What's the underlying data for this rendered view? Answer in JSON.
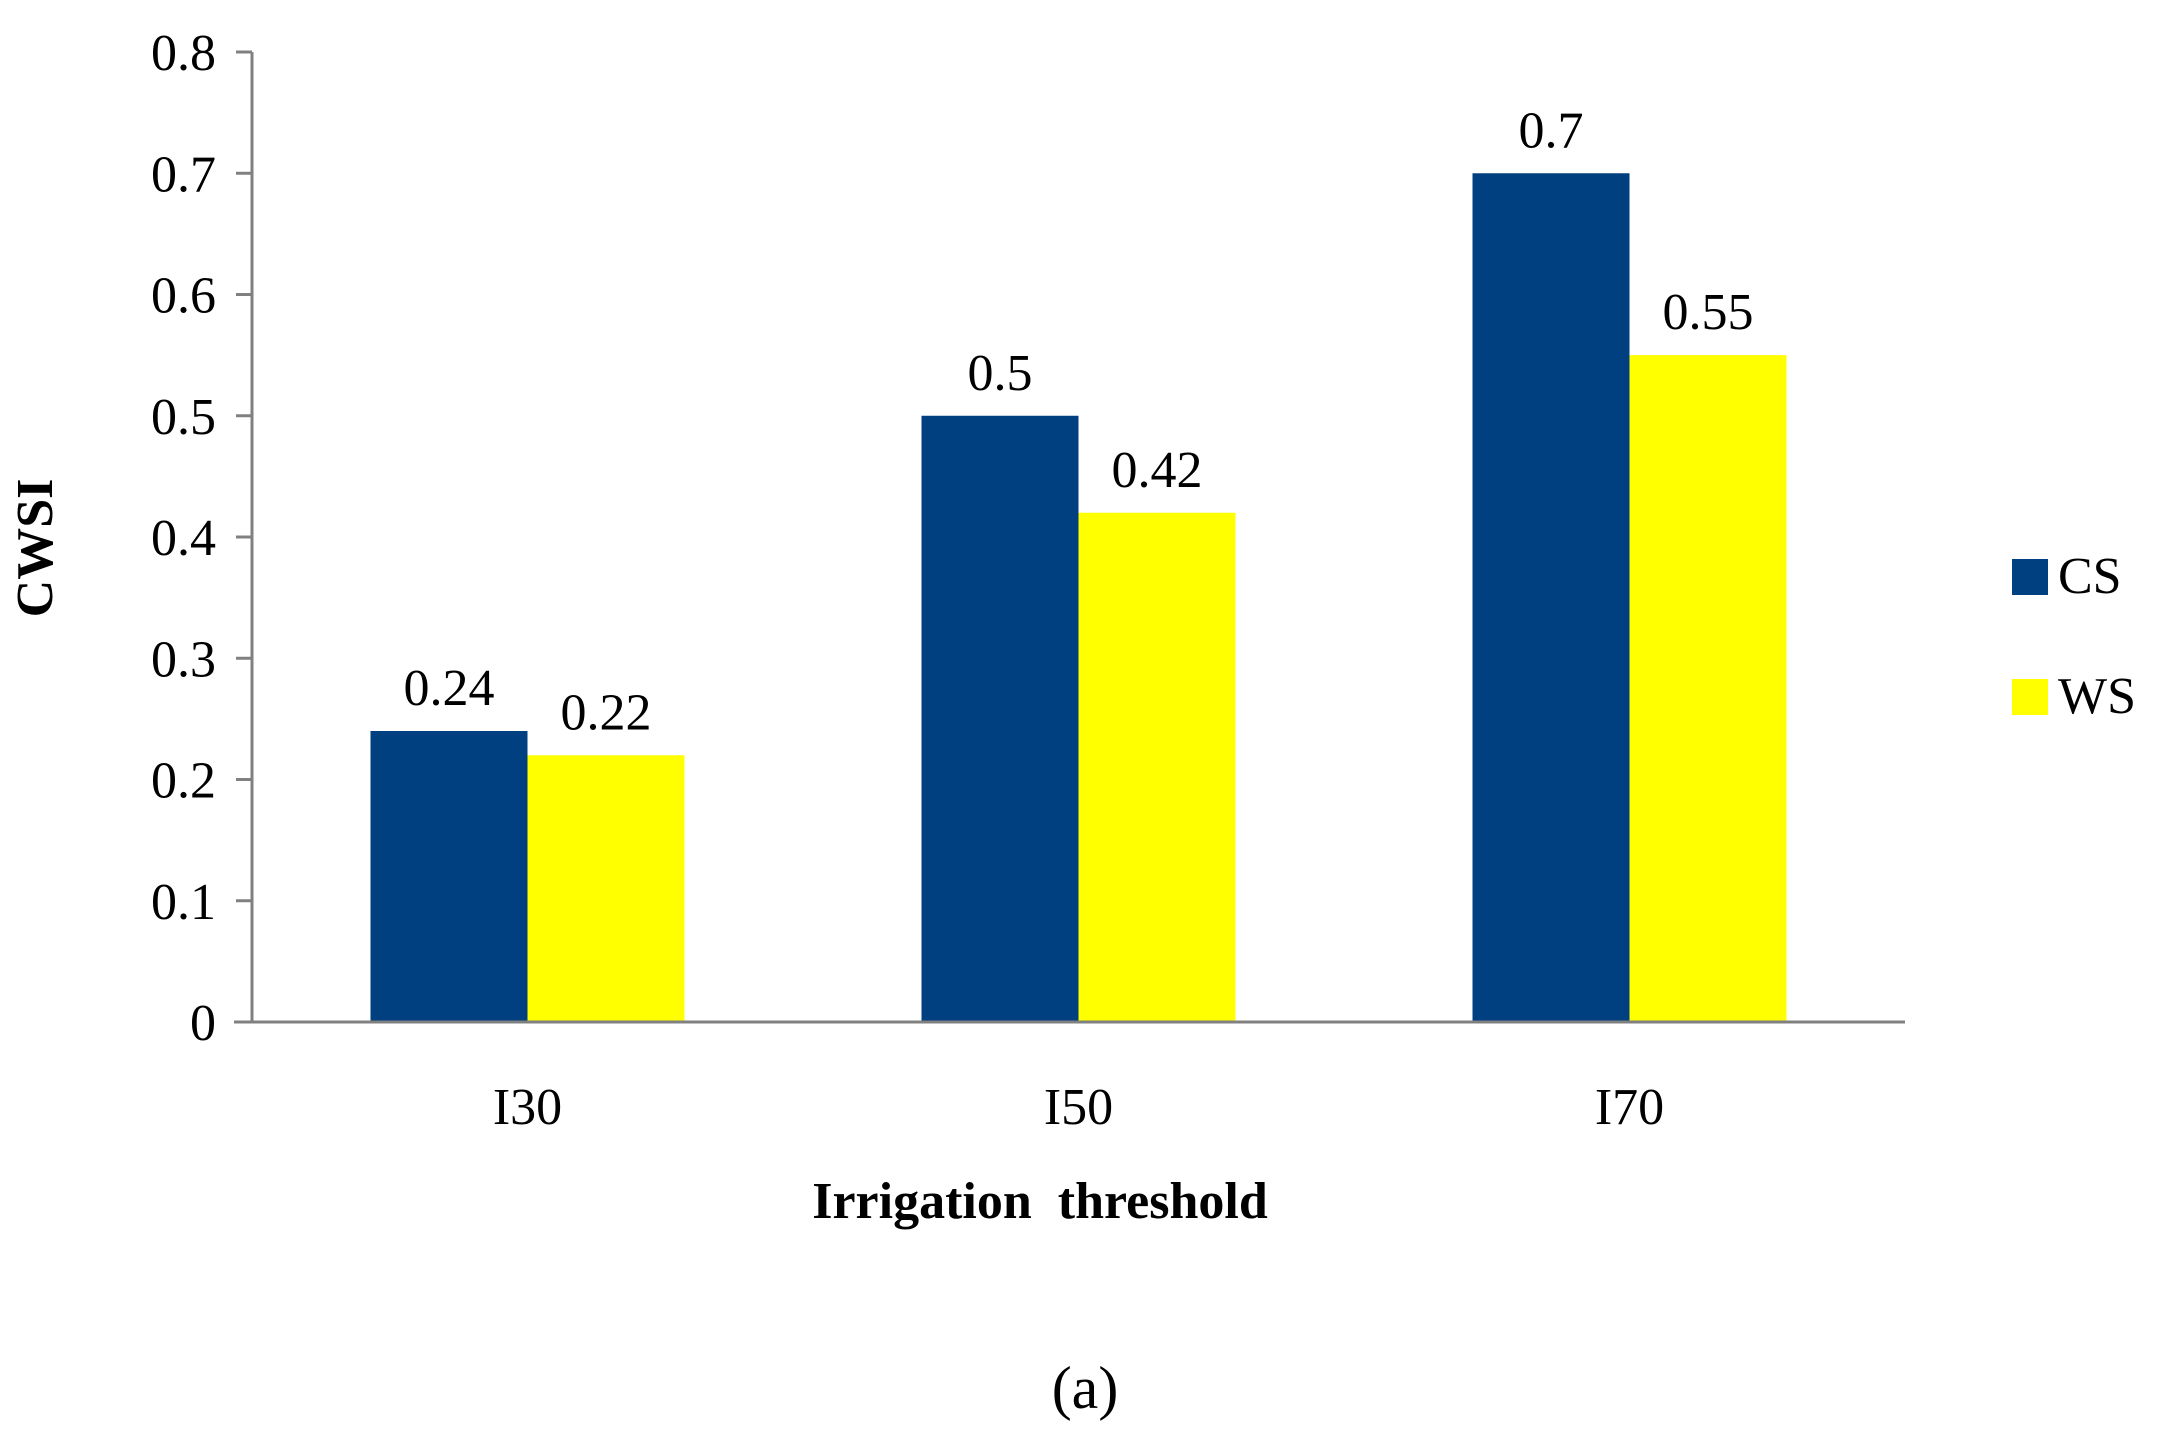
{
  "chart_data": {
    "type": "bar",
    "categories": [
      "I30",
      "I50",
      "I70"
    ],
    "series": [
      {
        "name": "CS",
        "values": [
          0.24,
          0.5,
          0.7
        ],
        "data_labels": [
          "0.24",
          "0.5",
          "0.7"
        ]
      },
      {
        "name": "WS",
        "values": [
          0.22,
          0.42,
          0.55
        ],
        "data_labels": [
          "0.22",
          "0.42",
          "0.55"
        ]
      }
    ],
    "xlabel": "Irrigation  threshold",
    "ylabel": "CWSI",
    "ylim": [
      0,
      0.8
    ],
    "yticks": [
      "0",
      "0.1",
      "0.2",
      "0.3",
      "0.4",
      "0.5",
      "0.6",
      "0.7",
      "0.8"
    ],
    "grid": false,
    "legend_placement": "right",
    "panel_label": "(a)",
    "colors": {
      "CS": "#004080",
      "WS": "#ffff00",
      "axis": "#808080"
    }
  }
}
